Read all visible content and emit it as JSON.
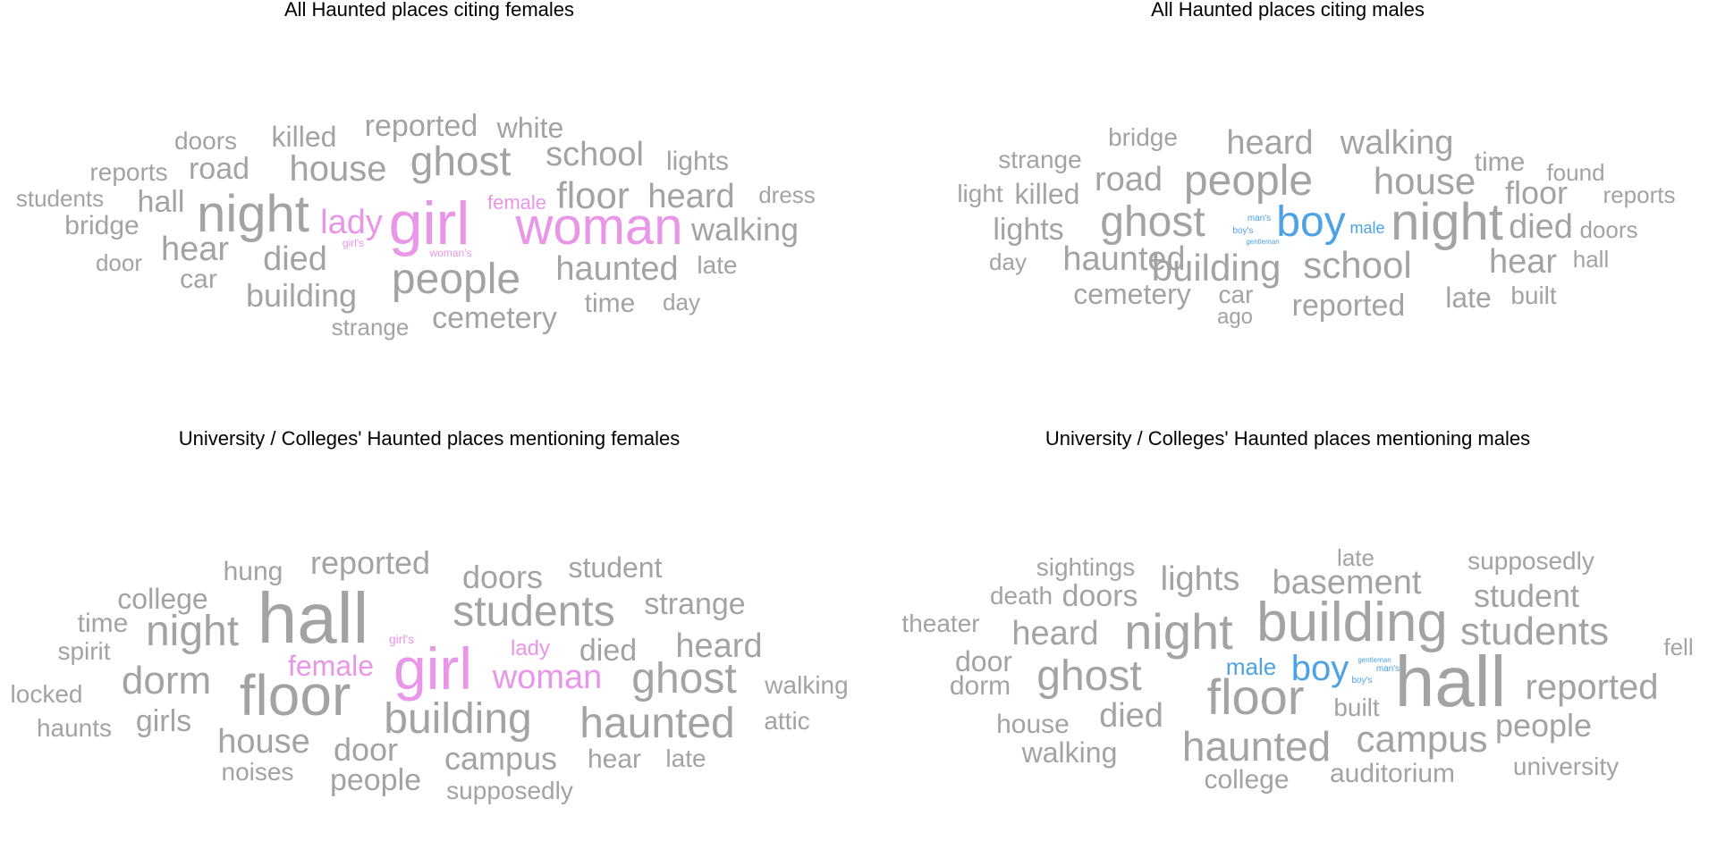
{
  "colors": {
    "neutral": "#a3a3a3",
    "female": "#e995e8",
    "male": "#4da2e6"
  },
  "chart_data": [
    {
      "type": "wordcloud",
      "title": "All Haunted places citing females",
      "words": [
        {
          "text": "woman",
          "weight": 58,
          "group": "female"
        },
        {
          "text": "girl",
          "weight": 68,
          "group": "female"
        },
        {
          "text": "night",
          "weight": 58,
          "group": "neutral"
        },
        {
          "text": "people",
          "weight": 48,
          "group": "neutral"
        },
        {
          "text": "ghost",
          "weight": 46,
          "group": "neutral"
        },
        {
          "text": "house",
          "weight": 40,
          "group": "neutral"
        },
        {
          "text": "floor",
          "weight": 42,
          "group": "neutral"
        },
        {
          "text": "school",
          "weight": 38,
          "group": "neutral"
        },
        {
          "text": "heard",
          "weight": 38,
          "group": "neutral"
        },
        {
          "text": "haunted",
          "weight": 38,
          "group": "neutral"
        },
        {
          "text": "lady",
          "weight": 38,
          "group": "female"
        },
        {
          "text": "hear",
          "weight": 38,
          "group": "neutral"
        },
        {
          "text": "died",
          "weight": 38,
          "group": "neutral"
        },
        {
          "text": "building",
          "weight": 36,
          "group": "neutral"
        },
        {
          "text": "cemetery",
          "weight": 34,
          "group": "neutral"
        },
        {
          "text": "walking",
          "weight": 36,
          "group": "neutral"
        },
        {
          "text": "reported",
          "weight": 34,
          "group": "neutral"
        },
        {
          "text": "white",
          "weight": 32,
          "group": "neutral"
        },
        {
          "text": "road",
          "weight": 34,
          "group": "neutral"
        },
        {
          "text": "killed",
          "weight": 32,
          "group": "neutral"
        },
        {
          "text": "hall",
          "weight": 34,
          "group": "neutral"
        },
        {
          "text": "bridge",
          "weight": 30,
          "group": "neutral"
        },
        {
          "text": "car",
          "weight": 30,
          "group": "neutral"
        },
        {
          "text": "lights",
          "weight": 30,
          "group": "neutral"
        },
        {
          "text": "time",
          "weight": 30,
          "group": "neutral"
        },
        {
          "text": "late",
          "weight": 28,
          "group": "neutral"
        },
        {
          "text": "doors",
          "weight": 28,
          "group": "neutral"
        },
        {
          "text": "reports",
          "weight": 28,
          "group": "neutral"
        },
        {
          "text": "students",
          "weight": 26,
          "group": "neutral"
        },
        {
          "text": "dress",
          "weight": 26,
          "group": "neutral"
        },
        {
          "text": "door",
          "weight": 26,
          "group": "neutral"
        },
        {
          "text": "day",
          "weight": 26,
          "group": "neutral"
        },
        {
          "text": "strange",
          "weight": 26,
          "group": "neutral"
        },
        {
          "text": "female",
          "weight": 22,
          "group": "female"
        },
        {
          "text": "girl's",
          "weight": 12,
          "group": "female"
        },
        {
          "text": "woman's",
          "weight": 12,
          "group": "female"
        }
      ]
    },
    {
      "type": "wordcloud",
      "title": "All Haunted places citing males",
      "words": [
        {
          "text": "night",
          "weight": 58,
          "group": "neutral"
        },
        {
          "text": "people",
          "weight": 48,
          "group": "neutral"
        },
        {
          "text": "boy",
          "weight": 48,
          "group": "male"
        },
        {
          "text": "ghost",
          "weight": 48,
          "group": "neutral"
        },
        {
          "text": "house",
          "weight": 42,
          "group": "neutral"
        },
        {
          "text": "school",
          "weight": 42,
          "group": "neutral"
        },
        {
          "text": "building",
          "weight": 42,
          "group": "neutral"
        },
        {
          "text": "heard",
          "weight": 38,
          "group": "neutral"
        },
        {
          "text": "walking",
          "weight": 38,
          "group": "neutral"
        },
        {
          "text": "road",
          "weight": 38,
          "group": "neutral"
        },
        {
          "text": "haunted",
          "weight": 38,
          "group": "neutral"
        },
        {
          "text": "hear",
          "weight": 38,
          "group": "neutral"
        },
        {
          "text": "died",
          "weight": 38,
          "group": "neutral"
        },
        {
          "text": "floor",
          "weight": 36,
          "group": "neutral"
        },
        {
          "text": "reported",
          "weight": 34,
          "group": "neutral"
        },
        {
          "text": "lights",
          "weight": 34,
          "group": "neutral"
        },
        {
          "text": "killed",
          "weight": 32,
          "group": "neutral"
        },
        {
          "text": "cemetery",
          "weight": 32,
          "group": "neutral"
        },
        {
          "text": "late",
          "weight": 32,
          "group": "neutral"
        },
        {
          "text": "time",
          "weight": 30,
          "group": "neutral"
        },
        {
          "text": "strange",
          "weight": 28,
          "group": "neutral"
        },
        {
          "text": "bridge",
          "weight": 28,
          "group": "neutral"
        },
        {
          "text": "light",
          "weight": 28,
          "group": "neutral"
        },
        {
          "text": "car",
          "weight": 28,
          "group": "neutral"
        },
        {
          "text": "built",
          "weight": 28,
          "group": "neutral"
        },
        {
          "text": "found",
          "weight": 26,
          "group": "neutral"
        },
        {
          "text": "reports",
          "weight": 26,
          "group": "neutral"
        },
        {
          "text": "doors",
          "weight": 26,
          "group": "neutral"
        },
        {
          "text": "hall",
          "weight": 26,
          "group": "neutral"
        },
        {
          "text": "day",
          "weight": 26,
          "group": "neutral"
        },
        {
          "text": "ago",
          "weight": 24,
          "group": "neutral"
        },
        {
          "text": "male",
          "weight": 18,
          "group": "male"
        },
        {
          "text": "man's",
          "weight": 10,
          "group": "male"
        },
        {
          "text": "boy's",
          "weight": 10,
          "group": "male"
        },
        {
          "text": "gentleman",
          "weight": 8,
          "group": "male"
        }
      ]
    },
    {
      "type": "wordcloud",
      "title": "University / Colleges' Haunted places mentioning females",
      "words": [
        {
          "text": "hall",
          "weight": 80,
          "group": "neutral"
        },
        {
          "text": "girl",
          "weight": 66,
          "group": "female"
        },
        {
          "text": "floor",
          "weight": 64,
          "group": "neutral"
        },
        {
          "text": "students",
          "weight": 48,
          "group": "neutral"
        },
        {
          "text": "building",
          "weight": 48,
          "group": "neutral"
        },
        {
          "text": "haunted",
          "weight": 48,
          "group": "neutral"
        },
        {
          "text": "ghost",
          "weight": 48,
          "group": "neutral"
        },
        {
          "text": "night",
          "weight": 48,
          "group": "neutral"
        },
        {
          "text": "dorm",
          "weight": 44,
          "group": "neutral"
        },
        {
          "text": "woman",
          "weight": 38,
          "group": "female"
        },
        {
          "text": "heard",
          "weight": 38,
          "group": "neutral"
        },
        {
          "text": "reported",
          "weight": 36,
          "group": "neutral"
        },
        {
          "text": "doors",
          "weight": 36,
          "group": "neutral"
        },
        {
          "text": "house",
          "weight": 38,
          "group": "neutral"
        },
        {
          "text": "campus",
          "weight": 36,
          "group": "neutral"
        },
        {
          "text": "door",
          "weight": 36,
          "group": "neutral"
        },
        {
          "text": "died",
          "weight": 34,
          "group": "neutral"
        },
        {
          "text": "strange",
          "weight": 34,
          "group": "neutral"
        },
        {
          "text": "student",
          "weight": 32,
          "group": "neutral"
        },
        {
          "text": "people",
          "weight": 34,
          "group": "neutral"
        },
        {
          "text": "college",
          "weight": 32,
          "group": "neutral"
        },
        {
          "text": "hung",
          "weight": 30,
          "group": "neutral"
        },
        {
          "text": "female",
          "weight": 32,
          "group": "female"
        },
        {
          "text": "girls",
          "weight": 34,
          "group": "neutral"
        },
        {
          "text": "time",
          "weight": 30,
          "group": "neutral"
        },
        {
          "text": "spirit",
          "weight": 28,
          "group": "neutral"
        },
        {
          "text": "locked",
          "weight": 28,
          "group": "neutral"
        },
        {
          "text": "haunts",
          "weight": 28,
          "group": "neutral"
        },
        {
          "text": "noises",
          "weight": 28,
          "group": "neutral"
        },
        {
          "text": "supposedly",
          "weight": 28,
          "group": "neutral"
        },
        {
          "text": "hear",
          "weight": 30,
          "group": "neutral"
        },
        {
          "text": "late",
          "weight": 28,
          "group": "neutral"
        },
        {
          "text": "walking",
          "weight": 28,
          "group": "neutral"
        },
        {
          "text": "attic",
          "weight": 28,
          "group": "neutral"
        },
        {
          "text": "lady",
          "weight": 24,
          "group": "female"
        },
        {
          "text": "girl's",
          "weight": 14,
          "group": "female"
        }
      ]
    },
    {
      "type": "wordcloud",
      "title": "University / Colleges' Haunted places mentioning males",
      "words": [
        {
          "text": "hall",
          "weight": 80,
          "group": "neutral"
        },
        {
          "text": "building",
          "weight": 62,
          "group": "neutral"
        },
        {
          "text": "floor",
          "weight": 56,
          "group": "neutral"
        },
        {
          "text": "night",
          "weight": 56,
          "group": "neutral"
        },
        {
          "text": "ghost",
          "weight": 48,
          "group": "neutral"
        },
        {
          "text": "haunted",
          "weight": 46,
          "group": "neutral"
        },
        {
          "text": "students",
          "weight": 44,
          "group": "neutral"
        },
        {
          "text": "campus",
          "weight": 42,
          "group": "neutral"
        },
        {
          "text": "boy",
          "weight": 40,
          "group": "male"
        },
        {
          "text": "reported",
          "weight": 40,
          "group": "neutral"
        },
        {
          "text": "basement",
          "weight": 38,
          "group": "neutral"
        },
        {
          "text": "heard",
          "weight": 38,
          "group": "neutral"
        },
        {
          "text": "lights",
          "weight": 38,
          "group": "neutral"
        },
        {
          "text": "died",
          "weight": 38,
          "group": "neutral"
        },
        {
          "text": "student",
          "weight": 36,
          "group": "neutral"
        },
        {
          "text": "people",
          "weight": 36,
          "group": "neutral"
        },
        {
          "text": "doors",
          "weight": 34,
          "group": "neutral"
        },
        {
          "text": "door",
          "weight": 32,
          "group": "neutral"
        },
        {
          "text": "dorm",
          "weight": 30,
          "group": "neutral"
        },
        {
          "text": "house",
          "weight": 30,
          "group": "neutral"
        },
        {
          "text": "walking",
          "weight": 32,
          "group": "neutral"
        },
        {
          "text": "auditorium",
          "weight": 30,
          "group": "neutral"
        },
        {
          "text": "college",
          "weight": 30,
          "group": "neutral"
        },
        {
          "text": "university",
          "weight": 28,
          "group": "neutral"
        },
        {
          "text": "sightings",
          "weight": 28,
          "group": "neutral"
        },
        {
          "text": "death",
          "weight": 28,
          "group": "neutral"
        },
        {
          "text": "theater",
          "weight": 28,
          "group": "neutral"
        },
        {
          "text": "supposedly",
          "weight": 28,
          "group": "neutral"
        },
        {
          "text": "late",
          "weight": 26,
          "group": "neutral"
        },
        {
          "text": "fell",
          "weight": 26,
          "group": "neutral"
        },
        {
          "text": "built",
          "weight": 28,
          "group": "neutral"
        },
        {
          "text": "male",
          "weight": 26,
          "group": "male"
        },
        {
          "text": "man's",
          "weight": 10,
          "group": "male"
        },
        {
          "text": "boy's",
          "weight": 10,
          "group": "male"
        },
        {
          "text": "gentleman",
          "weight": 8,
          "group": "male"
        }
      ]
    }
  ]
}
